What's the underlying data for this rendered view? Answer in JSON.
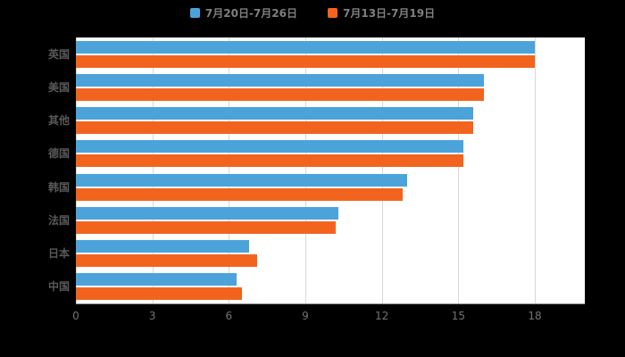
{
  "chart_data": {
    "type": "bar",
    "orientation": "horizontal",
    "title": "",
    "categories": [
      "英国",
      "美国",
      "其他",
      "德国",
      "韩国",
      "法国",
      "日本",
      "中国"
    ],
    "series": [
      {
        "name": "7月20日-7月26日",
        "color": "#4ba3da",
        "values": [
          18,
          16.0,
          15.6,
          15.2,
          13.0,
          10.3,
          6.8,
          6.3
        ]
      },
      {
        "name": "7月13日-7月19日",
        "color": "#f2641e",
        "values": [
          18,
          16.0,
          15.6,
          15.2,
          12.8,
          10.2,
          7.1,
          6.5
        ]
      }
    ],
    "xlim": [
      0,
      18
    ],
    "xticks": [
      0,
      3,
      6,
      9,
      12,
      15,
      18
    ],
    "ylabel": "",
    "xlabel": "",
    "grid": true,
    "legend_position": "top",
    "plot_background": "#ffffff",
    "page_background": "#000000"
  }
}
